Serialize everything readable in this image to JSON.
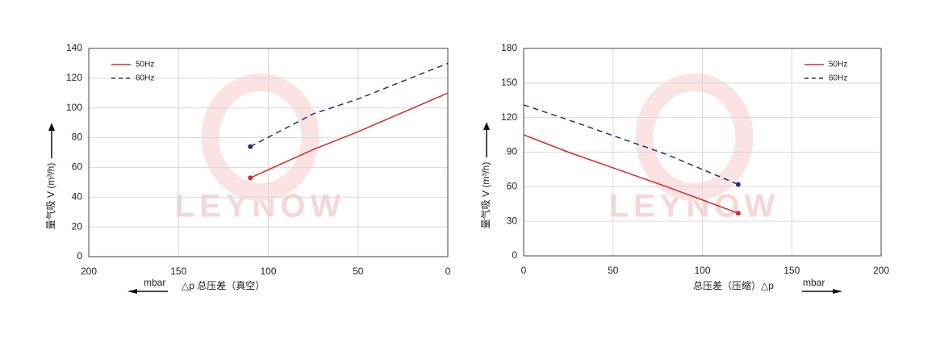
{
  "chart_data": [
    {
      "type": "line",
      "y_label": "量气吸 V (m³/h)",
      "x_label": "△p 总压差（真空）",
      "x_unit": "mbar",
      "watermark": "LEYNOW",
      "x": [
        110,
        75,
        50,
        0
      ],
      "series": [
        {
          "name": "50Hz",
          "color": "#d02a2a",
          "dash": false,
          "values": [
            53,
            72,
            84,
            110
          ]
        },
        {
          "name": "60Hz",
          "color": "#23307a",
          "dash": true,
          "values": [
            74,
            96,
            106,
            130
          ]
        }
      ],
      "xlim": [
        200,
        0
      ],
      "ylim": [
        0,
        140
      ],
      "xticks": [
        200,
        150,
        100,
        50,
        0
      ],
      "yticks": [
        0,
        20,
        40,
        60,
        80,
        100,
        120,
        140
      ],
      "grid": true,
      "legend": "top-left"
    },
    {
      "type": "line",
      "y_label": "量气吸 V (m³/h)",
      "x_label": "总压差（压缩）△p",
      "x_unit": "mbar",
      "watermark": "LEYNOW",
      "x": [
        0,
        25,
        80,
        120
      ],
      "series": [
        {
          "name": "50Hz",
          "color": "#d02a2a",
          "dash": false,
          "values": [
            105,
            90,
            60,
            37
          ]
        },
        {
          "name": "60Hz",
          "color": "#23307a",
          "dash": true,
          "values": [
            131,
            118,
            88,
            62
          ]
        }
      ],
      "xlim": [
        0,
        200
      ],
      "ylim": [
        0,
        180
      ],
      "xticks": [
        0,
        50,
        100,
        150,
        200
      ],
      "yticks": [
        0,
        30,
        60,
        90,
        120,
        150,
        180
      ],
      "grid": true,
      "legend": "top-right"
    }
  ]
}
